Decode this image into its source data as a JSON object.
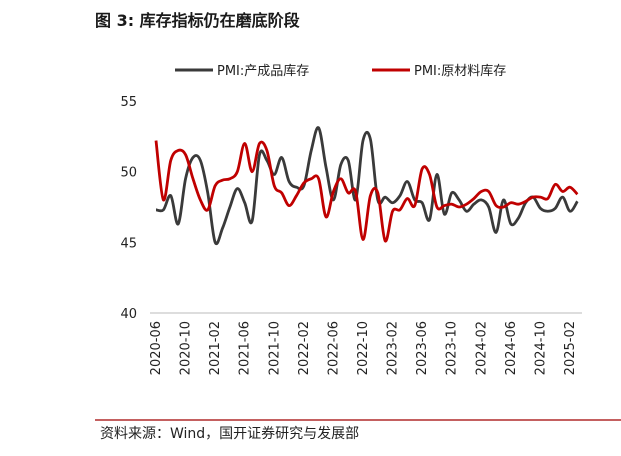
{
  "chart_data": {
    "type": "line",
    "title": "图 3:  库存指标仍在磨底阶段",
    "source": "资料来源：Wind，国开证券研究与发展部",
    "categories": [
      "2020-06",
      null,
      null,
      null,
      "2020-10",
      null,
      null,
      null,
      "2021-02",
      null,
      null,
      null,
      "2021-06",
      null,
      null,
      null,
      "2021-10",
      null,
      null,
      null,
      "2022-02",
      null,
      null,
      null,
      "2022-06",
      null,
      null,
      null,
      "2022-10",
      null,
      null,
      null,
      "2023-02",
      null,
      null,
      null,
      "2023-06",
      null,
      null,
      null,
      "2023-10",
      null,
      null,
      null,
      "2024-02",
      null,
      null,
      null,
      "2024-06",
      null,
      null,
      null,
      "2024-10",
      null,
      null,
      null,
      "2025-02",
      null
    ],
    "series": [
      {
        "name": "PMI:产成品库存",
        "color": "#3a3a3a",
        "values": [
          47.3,
          47.3,
          48.3,
          46.3,
          49.5,
          51.0,
          50.8,
          48.5,
          45.0,
          46.0,
          47.5,
          48.8,
          47.8,
          46.5,
          51.2,
          50.8,
          49.8,
          51.0,
          49.3,
          48.9,
          49.0,
          51.5,
          53.1,
          50.3,
          48.0,
          50.5,
          50.8,
          48.0,
          52.2,
          52.3,
          48.0,
          48.2,
          47.8,
          48.3,
          49.3,
          48.0,
          47.8,
          46.6,
          49.8,
          47.0,
          48.5,
          48.0,
          47.2,
          47.7,
          48.0,
          47.5,
          45.7,
          48.0,
          46.3,
          46.7,
          47.8,
          48.2,
          47.4,
          47.2,
          47.4,
          48.2,
          47.2,
          47.9
        ]
      },
      {
        "name": "PMI:原材料库存",
        "color": "#c00000",
        "values": [
          52.2,
          48.0,
          50.8,
          51.5,
          51.2,
          49.5,
          48.0,
          47.3,
          49.0,
          49.4,
          49.5,
          50.0,
          52.0,
          50.0,
          52.0,
          51.5,
          49.0,
          48.5,
          47.6,
          48.3,
          49.2,
          49.5,
          49.5,
          46.8,
          48.6,
          49.5,
          48.5,
          48.6,
          45.2,
          48.3,
          48.5,
          45.1,
          47.2,
          47.3,
          48.1,
          47.6,
          50.2,
          49.8,
          47.5,
          47.6,
          47.7,
          47.5,
          47.7,
          48.1,
          48.6,
          48.6,
          47.6,
          47.5,
          47.8,
          47.7,
          47.9,
          48.2,
          48.2,
          48.1,
          49.1,
          48.6,
          48.9,
          48.4
        ]
      }
    ],
    "ylim": [
      40,
      55
    ],
    "yticks": [
      40,
      45,
      50,
      55
    ]
  }
}
